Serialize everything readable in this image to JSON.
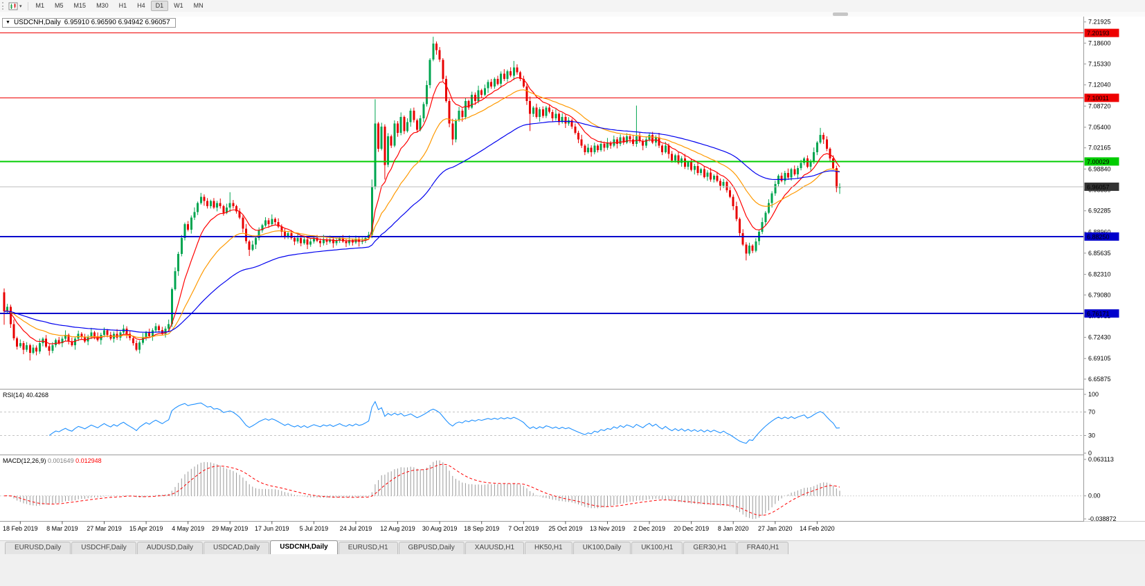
{
  "app": {
    "toolbar": {
      "timeframes": [
        "M1",
        "M5",
        "M15",
        "M30",
        "H1",
        "H4",
        "D1",
        "W1",
        "MN"
      ],
      "active_timeframe": "D1"
    },
    "chart_title": {
      "symbol": "USDCNH,Daily",
      "ohlc": "6.95910 6.96590 6.94942 6.96057"
    },
    "tabs": [
      "EURUSD,Daily",
      "USDCHF,Daily",
      "AUDUSD,Daily",
      "USDCAD,Daily",
      "USDCNH,Daily",
      "EURUSD,H1",
      "GBPUSD,Daily",
      "XAUUSD,H1",
      "HK50,H1",
      "UK100,Daily",
      "UK100,H1",
      "GER30,H1",
      "FRA40,H1"
    ],
    "active_tab": "USDCNH,Daily"
  },
  "chart_data": [
    {
      "type": "candlestick",
      "title": "USDCNH,Daily",
      "x_tick_labels": [
        "18 Feb 2019",
        "8 Mar 2019",
        "27 Mar 2019",
        "15 Apr 2019",
        "4 May 2019",
        "29 May 2019",
        "17 Jun 2019",
        "5 Jul 2019",
        "24 Jul 2019",
        "12 Aug 2019",
        "30 Aug 2019",
        "18 Sep 2019",
        "7 Oct 2019",
        "25 Oct 2019",
        "13 Nov 2019",
        "2 Dec 2019",
        "20 Dec 2019",
        "8 Jan 2020",
        "27 Jan 2020",
        "14 Feb 2020"
      ],
      "x_tick_indices": [
        5,
        18,
        31,
        44,
        57,
        70,
        83,
        96,
        109,
        122,
        135,
        148,
        161,
        174,
        187,
        200,
        213,
        226,
        239,
        252
      ],
      "ylim": [
        6.6435,
        7.2265
      ],
      "y_axis_labels": [
        "7.21925",
        "7.18600",
        "7.15330",
        "7.12040",
        "7.08720",
        "7.05400",
        "7.02165",
        "6.98840",
        "6.95550",
        "6.92285",
        "6.88960",
        "6.85635",
        "6.82310",
        "6.79080",
        "6.75755",
        "6.72430",
        "6.69105",
        "6.65875"
      ],
      "first_open": 6.795,
      "closes": [
        6.765,
        6.772,
        6.745,
        6.723,
        6.71,
        6.715,
        6.705,
        6.712,
        6.7,
        6.708,
        6.702,
        6.715,
        6.722,
        6.71,
        6.703,
        6.712,
        6.72,
        6.715,
        6.722,
        6.728,
        6.718,
        6.712,
        6.722,
        6.73,
        6.725,
        6.718,
        6.725,
        6.732,
        6.726,
        6.72,
        6.728,
        6.735,
        6.728,
        6.722,
        6.73,
        6.724,
        6.732,
        6.738,
        6.73,
        6.723,
        6.715,
        6.705,
        6.716,
        6.724,
        6.732,
        6.726,
        6.735,
        6.742,
        6.736,
        6.73,
        6.738,
        6.745,
        6.8,
        6.828,
        6.855,
        6.88,
        6.902,
        6.893,
        6.912,
        6.921,
        6.935,
        6.945,
        6.938,
        6.93,
        6.938,
        6.928,
        6.935,
        6.93,
        6.92,
        6.928,
        6.935,
        6.93,
        6.922,
        6.912,
        6.895,
        6.875,
        6.862,
        6.87,
        6.88,
        6.892,
        6.9,
        6.908,
        6.902,
        6.91,
        6.905,
        6.898,
        6.89,
        6.882,
        6.888,
        6.88,
        6.875,
        6.88,
        6.872,
        6.878,
        6.87,
        6.875,
        6.88,
        6.876,
        6.872,
        6.878,
        6.874,
        6.878,
        6.872,
        6.876,
        6.88,
        6.875,
        6.872,
        6.877,
        6.873,
        6.878,
        6.874,
        6.876,
        6.88,
        6.885,
        6.96,
        7.06,
        7.02,
        7.055,
        6.995,
        7.04,
        7.025,
        7.06,
        7.045,
        7.07,
        7.048,
        7.062,
        7.08,
        7.065,
        7.05,
        7.068,
        7.09,
        7.12,
        7.16,
        7.185,
        7.175,
        7.16,
        7.13,
        7.095,
        7.06,
        7.035,
        7.065,
        7.08,
        7.07,
        7.095,
        7.085,
        7.105,
        7.095,
        7.112,
        7.105,
        7.115,
        7.125,
        7.118,
        7.13,
        7.122,
        7.138,
        7.13,
        7.142,
        7.135,
        7.148,
        7.14,
        7.13,
        7.118,
        7.095,
        7.075,
        7.085,
        7.07,
        7.082,
        7.072,
        7.085,
        7.078,
        7.068,
        7.075,
        7.062,
        7.07,
        7.06,
        7.065,
        7.055,
        7.045,
        7.035,
        7.025,
        7.015,
        7.022,
        7.015,
        7.025,
        7.018,
        7.028,
        7.022,
        7.03,
        7.025,
        7.035,
        7.028,
        7.038,
        7.03,
        7.04,
        7.035,
        7.028,
        7.04,
        7.032,
        7.025,
        7.035,
        7.042,
        7.03,
        7.038,
        7.025,
        7.015,
        7.025,
        7.012,
        7.002,
        7.01,
        6.998,
        7.005,
        6.992,
        6.999,
        6.987,
        6.993,
        6.982,
        6.988,
        6.976,
        6.983,
        6.972,
        6.978,
        6.97,
        6.962,
        6.968,
        6.955,
        6.945,
        6.93,
        6.91,
        6.888,
        6.87,
        6.856,
        6.868,
        6.86,
        6.875,
        6.89,
        6.905,
        6.92,
        6.935,
        6.95,
        6.965,
        6.978,
        6.97,
        6.982,
        6.975,
        6.988,
        6.98,
        6.99,
        6.998,
        7.005,
        6.992,
        7.0,
        7.015,
        7.03,
        7.042,
        7.035,
        7.02,
        7.005,
        6.99,
        6.9591,
        6.9606
      ],
      "wick_overrides": {
        "0": {
          "h": 6.801,
          "l": 6.744
        },
        "8": {
          "l": 6.688
        },
        "70": {
          "h": 6.952
        },
        "76": {
          "l": 6.852
        },
        "114": {
          "h": 6.972,
          "l": 6.88
        },
        "115": {
          "h": 7.098
        },
        "118": {
          "l": 6.972
        },
        "133": {
          "h": 7.196
        },
        "139": {
          "l": 7.026
        },
        "158": {
          "h": 7.158
        },
        "163": {
          "l": 7.048
        },
        "196": {
          "h": 7.088
        },
        "230": {
          "l": 6.845
        },
        "253": {
          "h": 7.053
        },
        "258": {
          "l": 6.952
        },
        "259": {
          "h": 6.9659,
          "l": 6.9494
        }
      },
      "up_color": "#00A550",
      "down_color": "#E80000",
      "moving_averages": [
        {
          "period": 10,
          "color": "#FF0000"
        },
        {
          "period": 25,
          "color": "#FF9900"
        },
        {
          "period": 60,
          "color": "#0000EE"
        }
      ],
      "hlines": [
        {
          "label": "7.20193",
          "value": 7.20193,
          "color": "#EE0000",
          "width": 1
        },
        {
          "label": "7.10011",
          "value": 7.10011,
          "color": "#EE0000",
          "width": 1
        },
        {
          "label": "7.00029",
          "value": 7.00029,
          "color": "#00CC00",
          "width": 2
        },
        {
          "label": "6.88250",
          "value": 6.8825,
          "color": "#0000CC",
          "width": 2
        },
        {
          "label": "6.76171",
          "value": 6.76171,
          "color": "#0000CC",
          "width": 2
        }
      ],
      "bid_line": {
        "label": "6.96057",
        "value": 6.96057,
        "line_color": "#bcbcbc",
        "badge_color": "#333333"
      }
    },
    {
      "type": "line",
      "indicator": "RSI",
      "label": "RSI(14)",
      "display_value": "40.4268",
      "period": 14,
      "ylim": [
        0,
        100
      ],
      "scale_labels": [
        "100",
        "70",
        "30",
        "0"
      ],
      "levels": [
        70,
        30
      ],
      "line_color": "#1E90FF"
    },
    {
      "type": "bar",
      "indicator": "MACD",
      "label": "MACD(12,26,9)",
      "display_values": [
        "0.001649",
        "0.012948"
      ],
      "fast": 12,
      "slow": 26,
      "signal": 9,
      "ylim": [
        -0.038872,
        0.063113
      ],
      "scale_labels": [
        "0.063113",
        "0.00",
        "-0.038872"
      ],
      "histogram_color": "#999999",
      "signal_color": "#FF0000"
    }
  ]
}
